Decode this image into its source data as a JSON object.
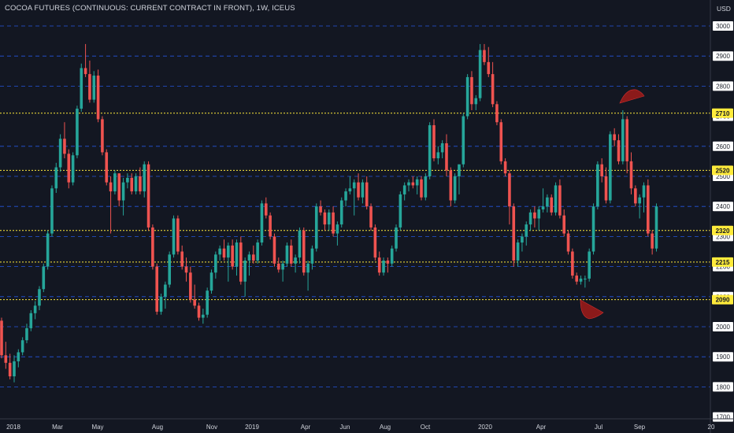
{
  "header": {
    "title": "COCOA FUTURES (CONTINUOUS: CURRENT CONTRACT IN FRONT), 1W, ICEUS",
    "currency": "USD"
  },
  "colors": {
    "background": "#131722",
    "up": "#26a69a",
    "down": "#ef5350",
    "grid_line": "#2962ff",
    "level_line": "#ffeb3b",
    "level_bg": "#ffeb3b",
    "tick_bg": "#ffffff",
    "shape": "#8b1a1a"
  },
  "chart_data": {
    "type": "candlestick",
    "instrument": "COCOA FUTURES (CONTINUOUS: CURRENT CONTRACT IN FRONT)",
    "interval": "1W",
    "exchange": "ICEUS",
    "ylim": [
      1700,
      3050
    ],
    "y_ticks": [
      1700,
      1800,
      1900,
      2000,
      2100,
      2200,
      2300,
      2400,
      2500,
      2600,
      2700,
      2800,
      2900,
      3000
    ],
    "dashed_levels": [
      3000,
      2900,
      2800,
      2600,
      2500,
      2400,
      2300,
      2200,
      2100,
      2000,
      1900,
      1800
    ],
    "horizontal_levels": [
      2710,
      2520,
      2320,
      2215,
      2090
    ],
    "x_ticks": [
      "2018",
      "Mar",
      "May",
      "Aug",
      "Nov",
      "2019",
      "Apr",
      "Jun",
      "Aug",
      "Oct",
      "2020",
      "Apr",
      "Jul",
      "Sep",
      "20"
    ],
    "candles": [
      [
        2020,
        2030,
        1895,
        1905
      ],
      [
        1905,
        1950,
        1860,
        1880
      ],
      [
        1880,
        1910,
        1825,
        1835
      ],
      [
        1835,
        1905,
        1815,
        1885
      ],
      [
        1885,
        1925,
        1865,
        1915
      ],
      [
        1915,
        1965,
        1905,
        1955
      ],
      [
        1955,
        2010,
        1945,
        1995
      ],
      [
        1995,
        2055,
        1985,
        2045
      ],
      [
        2045,
        2085,
        2025,
        2070
      ],
      [
        2070,
        2135,
        2055,
        2125
      ],
      [
        2125,
        2210,
        2115,
        2200
      ],
      [
        2200,
        2320,
        2190,
        2310
      ],
      [
        2310,
        2470,
        2300,
        2460
      ],
      [
        2460,
        2545,
        2445,
        2530
      ],
      [
        2530,
        2640,
        2515,
        2625
      ],
      [
        2625,
        2680,
        2560,
        2575
      ],
      [
        2575,
        2590,
        2460,
        2480
      ],
      [
        2480,
        2580,
        2470,
        2570
      ],
      [
        2570,
        2735,
        2560,
        2725
      ],
      [
        2725,
        2875,
        2715,
        2860
      ],
      [
        2860,
        2940,
        2830,
        2840
      ],
      [
        2840,
        2885,
        2745,
        2755
      ],
      [
        2755,
        2850,
        2745,
        2835
      ],
      [
        2835,
        2855,
        2680,
        2690
      ],
      [
        2690,
        2700,
        2570,
        2580
      ],
      [
        2580,
        2590,
        2470,
        2480
      ],
      [
        2480,
        2500,
        2310,
        2450
      ],
      [
        2450,
        2520,
        2440,
        2510
      ],
      [
        2510,
        2510,
        2400,
        2420
      ],
      [
        2420,
        2495,
        2370,
        2480
      ],
      [
        2480,
        2510,
        2460,
        2495
      ],
      [
        2495,
        2510,
        2440,
        2450
      ],
      [
        2450,
        2510,
        2440,
        2500
      ],
      [
        2500,
        2530,
        2440,
        2450
      ],
      [
        2450,
        2550,
        2430,
        2540
      ],
      [
        2540,
        2550,
        2320,
        2330
      ],
      [
        2330,
        2340,
        2190,
        2200
      ],
      [
        2200,
        2210,
        2040,
        2050
      ],
      [
        2050,
        2110,
        2040,
        2100
      ],
      [
        2100,
        2150,
        2060,
        2140
      ],
      [
        2140,
        2250,
        2130,
        2240
      ],
      [
        2240,
        2370,
        2230,
        2360
      ],
      [
        2360,
        2370,
        2240,
        2250
      ],
      [
        2250,
        2270,
        2190,
        2200
      ],
      [
        2200,
        2230,
        2150,
        2180
      ],
      [
        2180,
        2200,
        2080,
        2090
      ],
      [
        2090,
        2140,
        2060,
        2070
      ],
      [
        2070,
        2080,
        2020,
        2030
      ],
      [
        2030,
        2060,
        2010,
        2040
      ],
      [
        2040,
        2130,
        2030,
        2120
      ],
      [
        2120,
        2190,
        2110,
        2180
      ],
      [
        2180,
        2250,
        2160,
        2240
      ],
      [
        2240,
        2270,
        2220,
        2260
      ],
      [
        2260,
        2290,
        2220,
        2230
      ],
      [
        2230,
        2280,
        2150,
        2270
      ],
      [
        2270,
        2290,
        2190,
        2200
      ],
      [
        2200,
        2290,
        2170,
        2280
      ],
      [
        2280,
        2300,
        2140,
        2150
      ],
      [
        2150,
        2230,
        2100,
        2220
      ],
      [
        2220,
        2250,
        2170,
        2240
      ],
      [
        2240,
        2270,
        2210,
        2220
      ],
      [
        2220,
        2290,
        2210,
        2280
      ],
      [
        2280,
        2420,
        2270,
        2410
      ],
      [
        2410,
        2430,
        2360,
        2370
      ],
      [
        2370,
        2380,
        2290,
        2300
      ],
      [
        2300,
        2310,
        2200,
        2210
      ],
      [
        2210,
        2230,
        2180,
        2190
      ],
      [
        2190,
        2220,
        2150,
        2210
      ],
      [
        2210,
        2280,
        2200,
        2270
      ],
      [
        2270,
        2290,
        2200,
        2210
      ],
      [
        2210,
        2240,
        2180,
        2230
      ],
      [
        2230,
        2330,
        2210,
        2320
      ],
      [
        2320,
        2330,
        2170,
        2180
      ],
      [
        2180,
        2220,
        2120,
        2210
      ],
      [
        2210,
        2270,
        2190,
        2260
      ],
      [
        2260,
        2410,
        2250,
        2400
      ],
      [
        2400,
        2420,
        2370,
        2380
      ],
      [
        2380,
        2390,
        2320,
        2340
      ],
      [
        2340,
        2390,
        2320,
        2380
      ],
      [
        2380,
        2400,
        2300,
        2310
      ],
      [
        2310,
        2350,
        2270,
        2340
      ],
      [
        2340,
        2430,
        2330,
        2420
      ],
      [
        2420,
        2460,
        2400,
        2450
      ],
      [
        2450,
        2500,
        2440,
        2460
      ],
      [
        2460,
        2490,
        2370,
        2480
      ],
      [
        2480,
        2510,
        2420,
        2430
      ],
      [
        2430,
        2490,
        2410,
        2480
      ],
      [
        2480,
        2500,
        2390,
        2400
      ],
      [
        2400,
        2410,
        2320,
        2330
      ],
      [
        2330,
        2340,
        2220,
        2230
      ],
      [
        2230,
        2250,
        2170,
        2180
      ],
      [
        2180,
        2230,
        2170,
        2220
      ],
      [
        2220,
        2230,
        2180,
        2210
      ],
      [
        2210,
        2270,
        2200,
        2260
      ],
      [
        2260,
        2340,
        2250,
        2330
      ],
      [
        2330,
        2450,
        2320,
        2440
      ],
      [
        2440,
        2480,
        2420,
        2470
      ],
      [
        2470,
        2490,
        2450,
        2480
      ],
      [
        2480,
        2500,
        2460,
        2470
      ],
      [
        2470,
        2500,
        2440,
        2490
      ],
      [
        2490,
        2500,
        2420,
        2430
      ],
      [
        2430,
        2510,
        2420,
        2500
      ],
      [
        2500,
        2680,
        2490,
        2670
      ],
      [
        2670,
        2690,
        2550,
        2560
      ],
      [
        2560,
        2600,
        2540,
        2580
      ],
      [
        2580,
        2620,
        2560,
        2610
      ],
      [
        2610,
        2640,
        2500,
        2520
      ],
      [
        2520,
        2530,
        2400,
        2420
      ],
      [
        2420,
        2510,
        2410,
        2500
      ],
      [
        2500,
        2530,
        2440,
        2540
      ],
      [
        2540,
        2710,
        2530,
        2700
      ],
      [
        2700,
        2840,
        2690,
        2830
      ],
      [
        2830,
        2850,
        2720,
        2740
      ],
      [
        2740,
        2770,
        2720,
        2760
      ],
      [
        2760,
        2940,
        2750,
        2920
      ],
      [
        2920,
        2940,
        2870,
        2880
      ],
      [
        2880,
        2930,
        2830,
        2840
      ],
      [
        2840,
        2880,
        2730,
        2740
      ],
      [
        2740,
        2750,
        2670,
        2680
      ],
      [
        2680,
        2690,
        2540,
        2550
      ],
      [
        2550,
        2560,
        2500,
        2510
      ],
      [
        2510,
        2520,
        2340,
        2400
      ],
      [
        2400,
        2410,
        2200,
        2220
      ],
      [
        2220,
        2290,
        2200,
        2280
      ],
      [
        2280,
        2310,
        2250,
        2300
      ],
      [
        2300,
        2350,
        2270,
        2340
      ],
      [
        2340,
        2390,
        2320,
        2380
      ],
      [
        2380,
        2400,
        2330,
        2360
      ],
      [
        2360,
        2400,
        2320,
        2390
      ],
      [
        2390,
        2460,
        2380,
        2400
      ],
      [
        2400,
        2440,
        2380,
        2430
      ],
      [
        2430,
        2440,
        2370,
        2380
      ],
      [
        2380,
        2480,
        2370,
        2470
      ],
      [
        2470,
        2490,
        2360,
        2370
      ],
      [
        2370,
        2390,
        2300,
        2310
      ],
      [
        2310,
        2320,
        2240,
        2250
      ],
      [
        2250,
        2260,
        2160,
        2170
      ],
      [
        2170,
        2180,
        2140,
        2150
      ],
      [
        2150,
        2170,
        2140,
        2160
      ],
      [
        2160,
        2170,
        2130,
        2160
      ],
      [
        2160,
        2260,
        2150,
        2250
      ],
      [
        2250,
        2410,
        2240,
        2400
      ],
      [
        2400,
        2550,
        2390,
        2540
      ],
      [
        2540,
        2560,
        2480,
        2500
      ],
      [
        2500,
        2530,
        2410,
        2420
      ],
      [
        2420,
        2650,
        2410,
        2640
      ],
      [
        2640,
        2660,
        2600,
        2620
      ],
      [
        2620,
        2640,
        2540,
        2550
      ],
      [
        2550,
        2720,
        2540,
        2690
      ],
      [
        2690,
        2700,
        2510,
        2550
      ],
      [
        2550,
        2580,
        2440,
        2460
      ],
      [
        2460,
        2470,
        2400,
        2410
      ],
      [
        2410,
        2440,
        2360,
        2430
      ],
      [
        2430,
        2480,
        2380,
        2470
      ],
      [
        2470,
        2490,
        2300,
        2310
      ],
      [
        2310,
        2320,
        2240,
        2260
      ],
      [
        2260,
        2410,
        2250,
        2400
      ]
    ]
  }
}
